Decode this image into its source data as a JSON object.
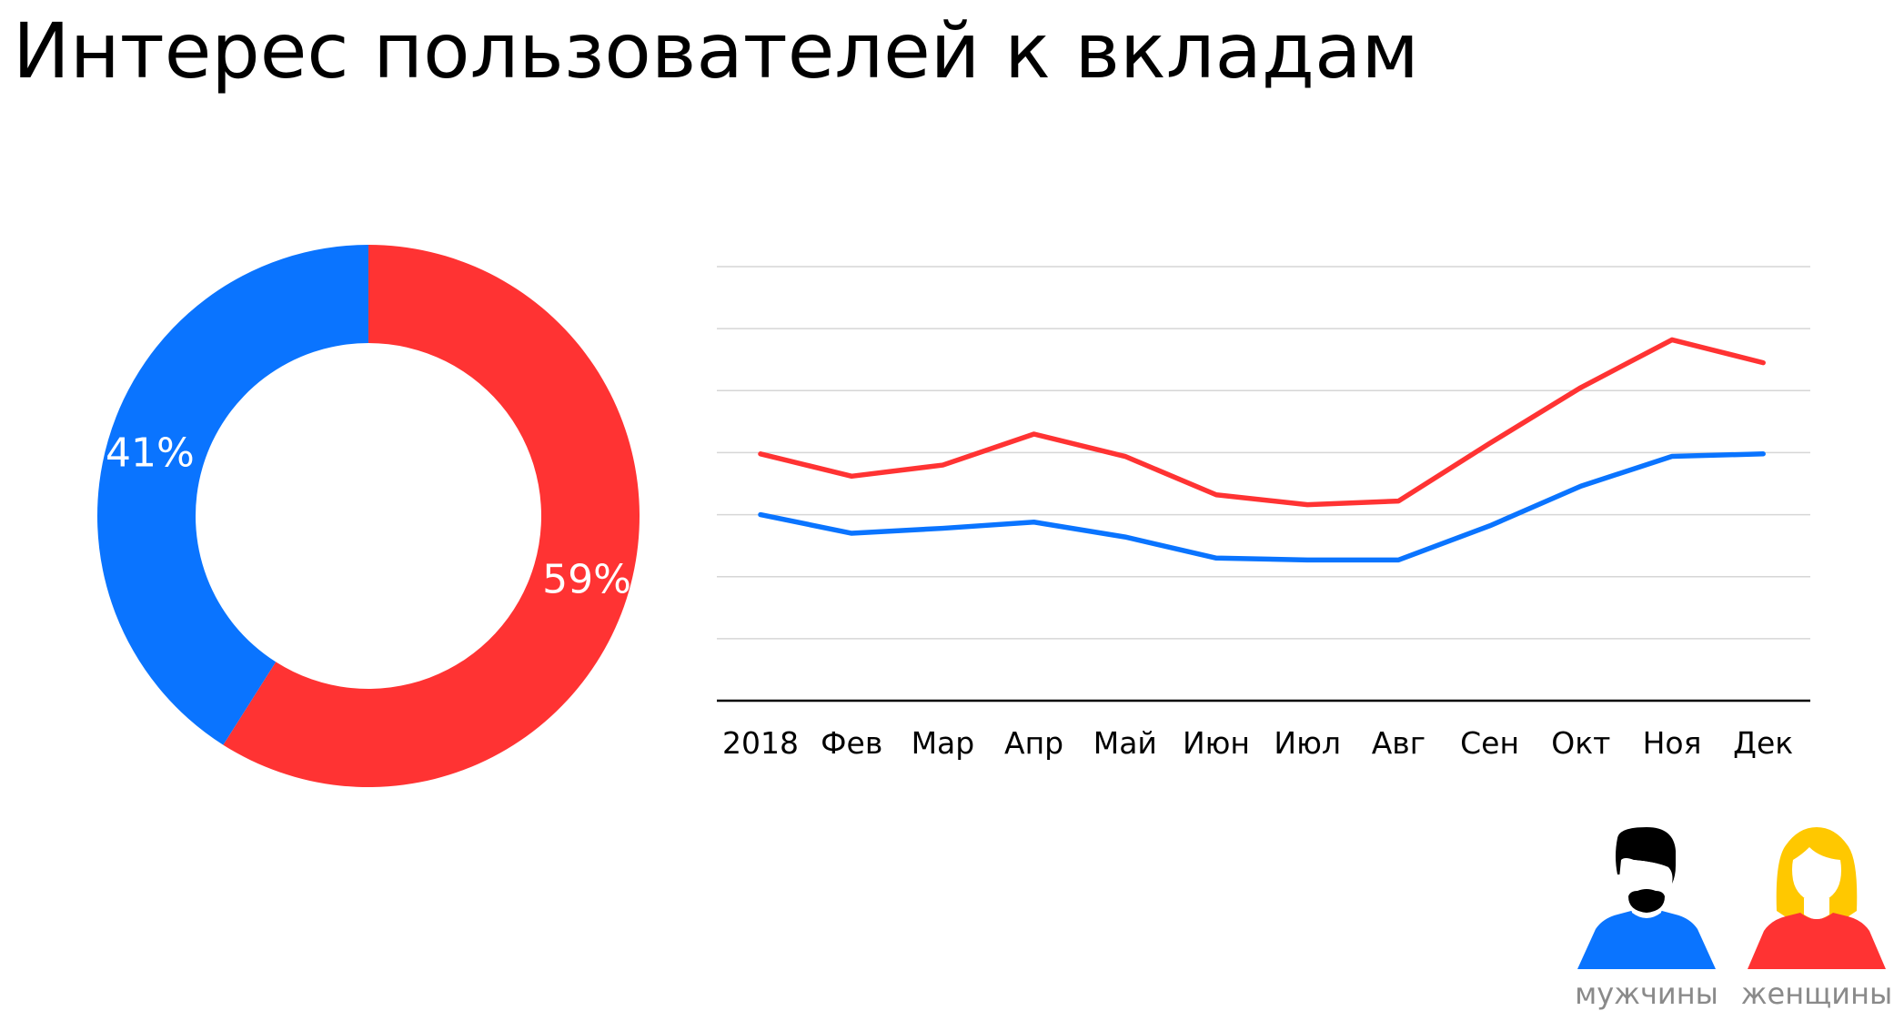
{
  "title": "Интерес пользователей к вкладам",
  "colors": {
    "men": "#0a74ff",
    "women": "#ff3333",
    "women_hair": "#ffc800",
    "grid": "#d6d6d6",
    "axis": "#000000",
    "text": "#000000"
  },
  "chart_data": [
    {
      "type": "pie",
      "style": "donut",
      "slices": [
        {
          "series": "женщины",
          "label": "59%",
          "value": 59,
          "color": "#ff3333"
        },
        {
          "series": "мужчины",
          "label": "41%",
          "value": 41,
          "color": "#0a74ff"
        }
      ]
    },
    {
      "type": "line",
      "categories": [
        "2018",
        "Фев",
        "Мар",
        "Апр",
        "Май",
        "Июн",
        "Июл",
        "Авг",
        "Сен",
        "Окт",
        "Ноя",
        "Дек"
      ],
      "ylim": [
        0,
        7
      ],
      "grid": true,
      "y_tick_labels_shown": false,
      "series": [
        {
          "name": "женщины",
          "color": "#ff3333",
          "values": [
            3.98,
            3.62,
            3.8,
            4.3,
            3.94,
            3.32,
            3.16,
            3.22,
            4.15,
            5.05,
            5.82,
            5.45
          ]
        },
        {
          "name": "мужчины",
          "color": "#0a74ff",
          "values": [
            3.0,
            2.7,
            2.78,
            2.88,
            2.64,
            2.3,
            2.27,
            2.27,
            2.82,
            3.46,
            3.94,
            3.98
          ]
        }
      ]
    }
  ],
  "legend": {
    "placement": "bottom-right",
    "items": [
      {
        "label": "мужчины",
        "icon": "man-icon"
      },
      {
        "label": "женщины",
        "icon": "woman-icon"
      }
    ]
  }
}
